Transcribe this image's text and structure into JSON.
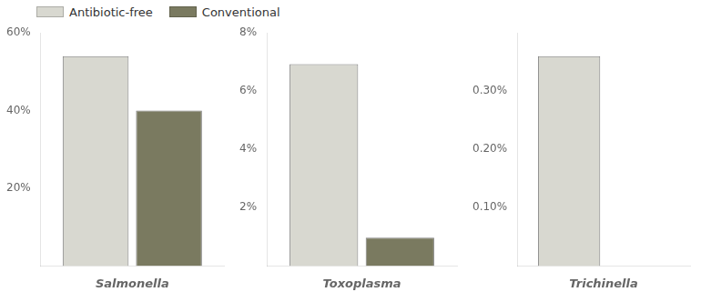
{
  "chart_data": [
    {
      "type": "bar",
      "x_label": "Salmonella",
      "categories": [
        null
      ],
      "series": [
        {
          "name": "Antibiotic-free",
          "color": "#d8d8d0",
          "values": [
            0.54
          ]
        },
        {
          "name": "Conventional",
          "color": "#7a7a60",
          "values": [
            0.4
          ]
        }
      ],
      "ylim": [
        0,
        0.6
      ],
      "yticks": [
        {
          "value": 0,
          "label": ""
        },
        {
          "value": 0.2,
          "label": "20%"
        },
        {
          "value": 0.4,
          "label": "40%"
        },
        {
          "value": 0.6,
          "label": "60%"
        }
      ],
      "grid": false,
      "legend": "upper left",
      "tick_labels": "y"
    },
    {
      "type": "bar",
      "x_label": "Toxoplasma",
      "categories": [
        null
      ],
      "series": [
        {
          "name": "Antibiotic-free",
          "color": "#d8d8d0",
          "values": [
            0.0693
          ]
        },
        {
          "name": "Conventional",
          "color": "#7a7a60",
          "values": [
            0.0097
          ]
        }
      ],
      "ylim": [
        0,
        0.08
      ],
      "yticks": [
        {
          "value": 0,
          "label": ""
        },
        {
          "value": 0.02,
          "label": "2%"
        },
        {
          "value": 0.04,
          "label": "4%"
        },
        {
          "value": 0.06,
          "label": "6%"
        },
        {
          "value": 0.08,
          "label": "8%"
        }
      ],
      "grid": false,
      "tick_labels": "y"
    },
    {
      "type": "bar",
      "x_label": "Trichinella",
      "categories": [
        null
      ],
      "series": [
        {
          "name": "Antibiotic-free",
          "color": "#d8d8d0",
          "values": [
            0.0036
          ]
        },
        {
          "name": "Conventional",
          "color": "#7a7a60",
          "values": [
            0.0
          ]
        }
      ],
      "ylim": [
        0,
        0.004
      ],
      "yticks": [
        {
          "value": 0,
          "label": ""
        },
        {
          "value": 0.001,
          "label": "0.10%"
        },
        {
          "value": 0.002,
          "label": "0.20%"
        },
        {
          "value": 0.003,
          "label": "0.30%"
        },
        {
          "value": 0.004,
          "label": ""
        }
      ],
      "grid": false,
      "tick_labels": "y"
    }
  ]
}
